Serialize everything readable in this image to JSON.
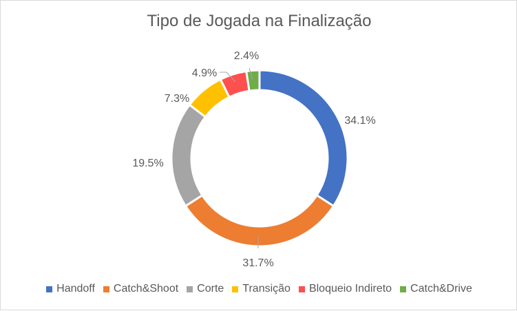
{
  "chart_data": {
    "type": "pie",
    "subtype": "doughnut",
    "title": "Tipo de Jogada na Finalização",
    "categories": [
      "Handoff",
      "Catch&Shoot",
      "Corte",
      "Transição",
      "Bloqueio Indireto",
      "Catch&Drive"
    ],
    "values": [
      34.1,
      31.7,
      19.5,
      7.3,
      4.9,
      2.4
    ],
    "labels": [
      "34.1%",
      "31.7%",
      "19.5%",
      "7.3%",
      "4.9%",
      "2.4%"
    ],
    "colors": [
      "#4472C4",
      "#ED7D31",
      "#A5A5A5",
      "#FFC000",
      "#FF5050",
      "#70AD47"
    ],
    "legend": "bottom",
    "start_angle": "12 o'clock",
    "direction": "clockwise"
  }
}
